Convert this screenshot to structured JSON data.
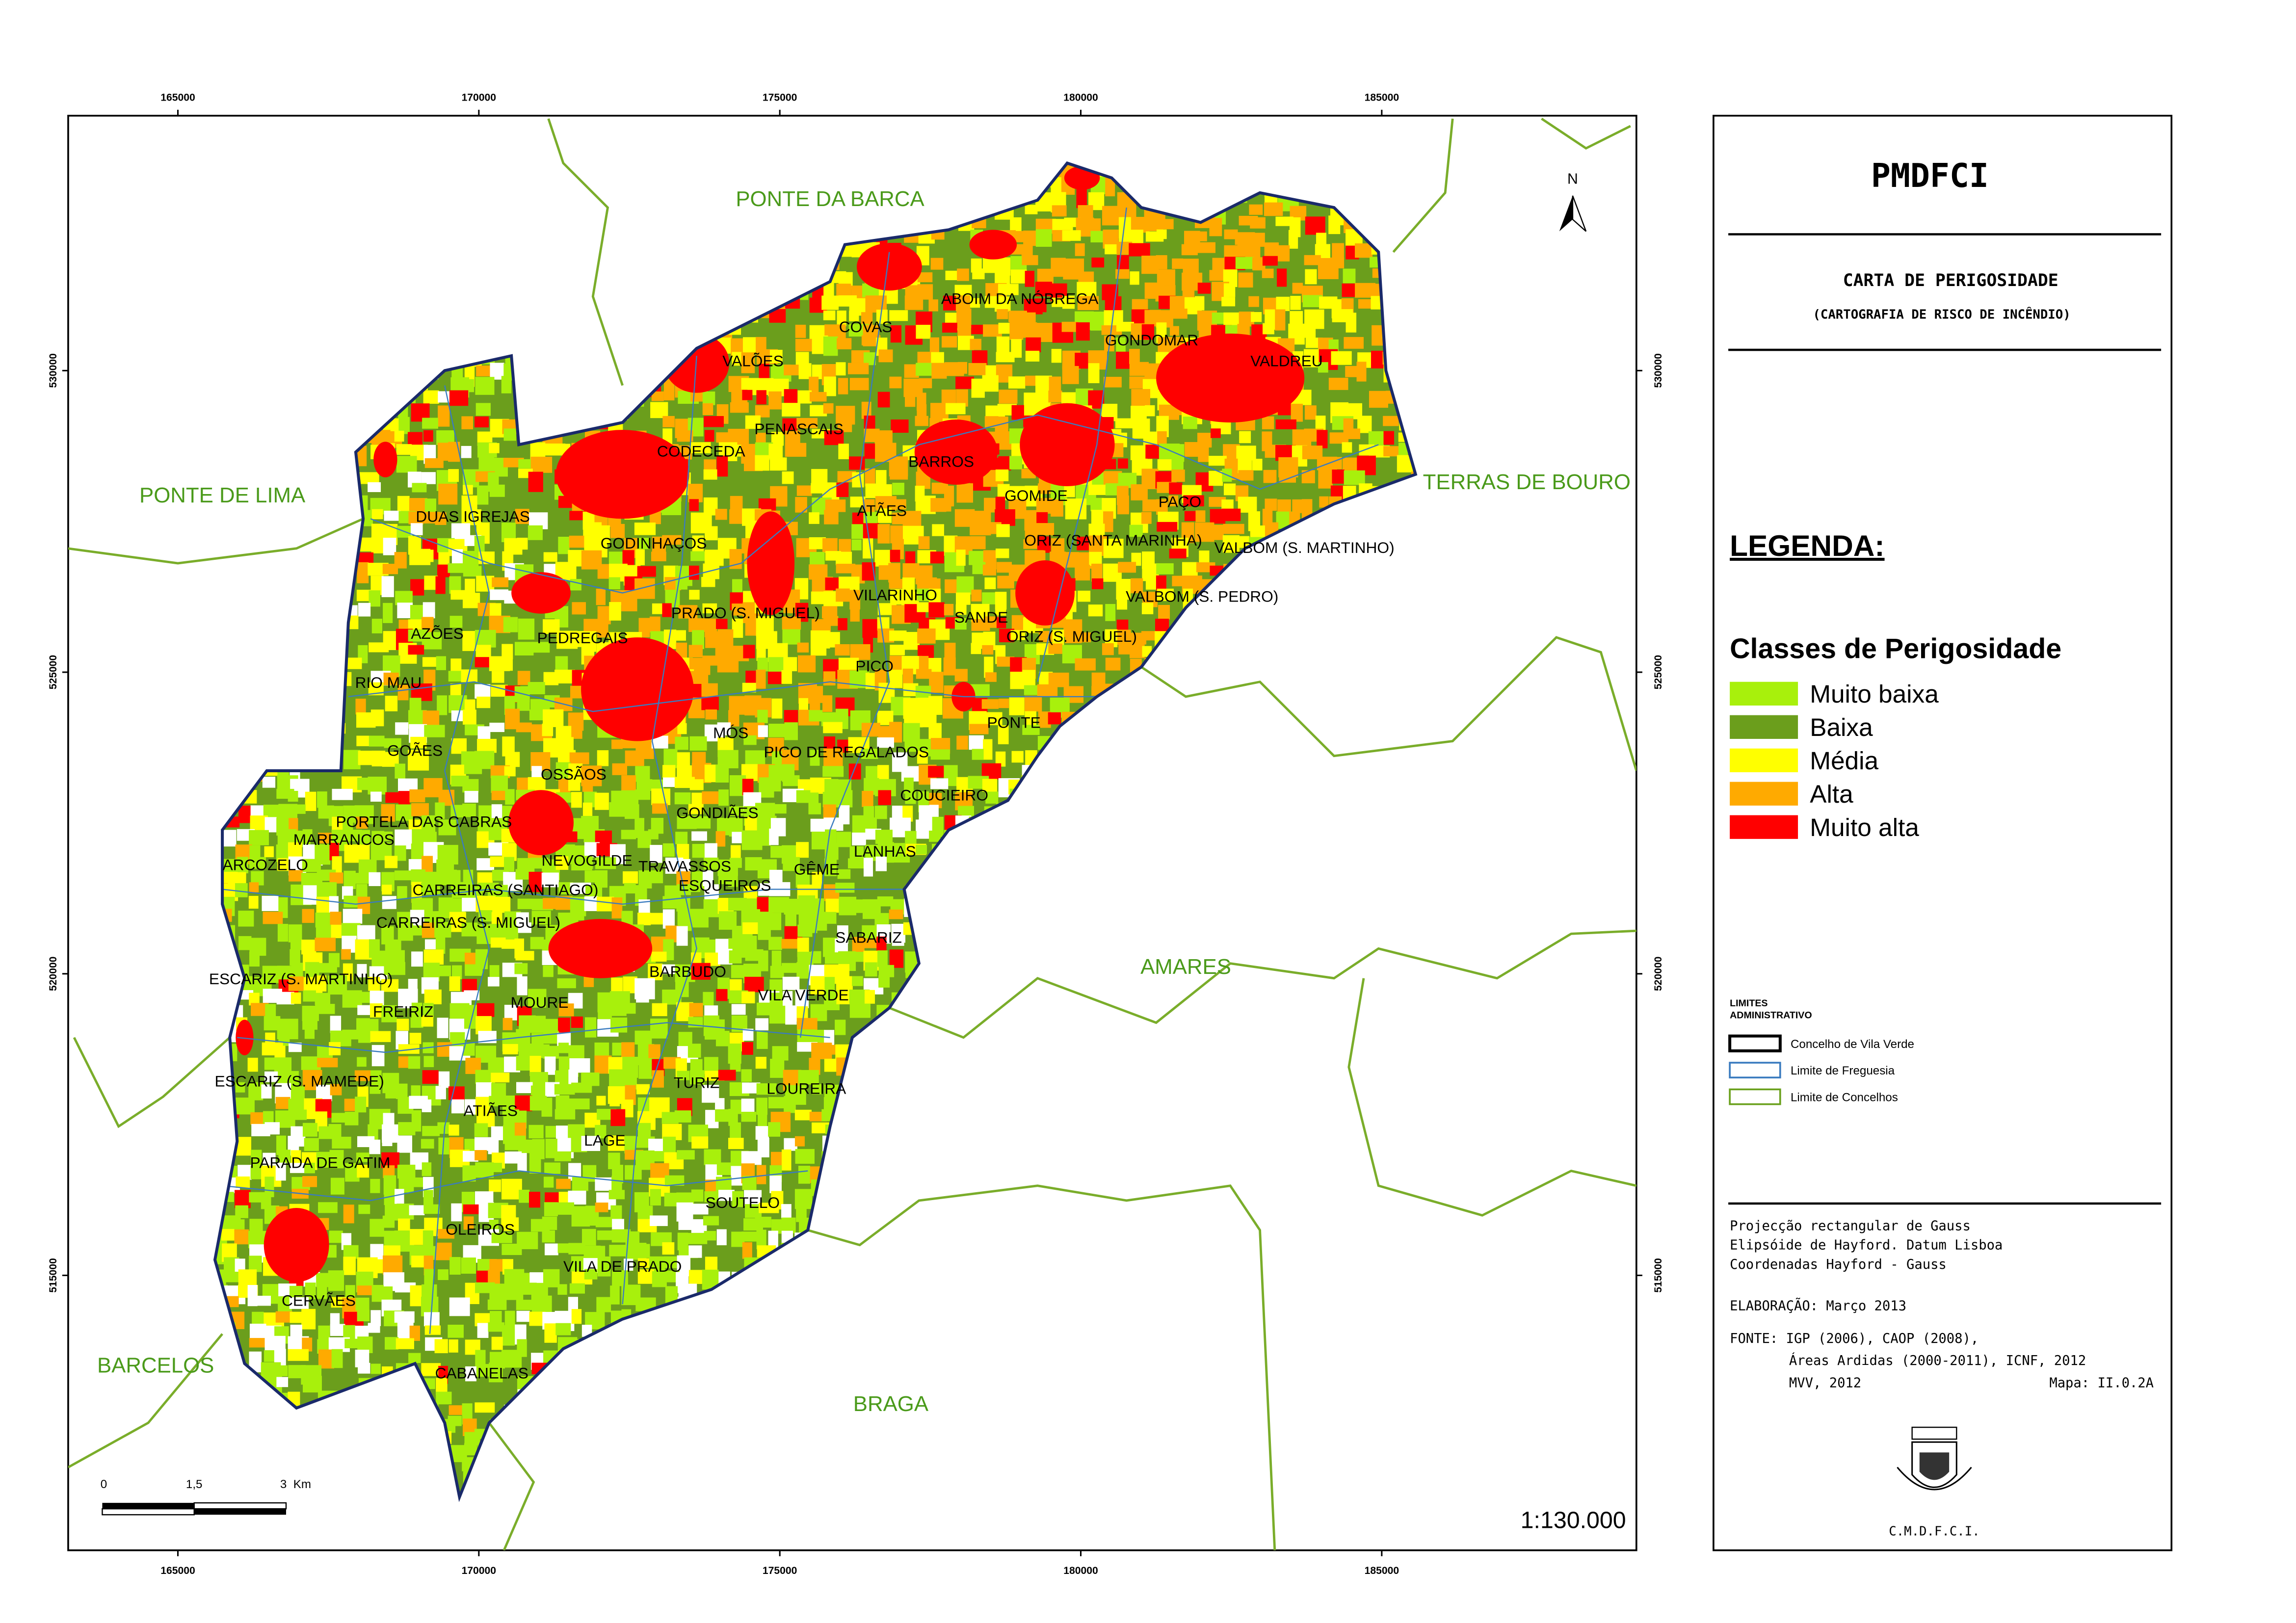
{
  "map": {
    "x_ticks": [
      165000,
      170000,
      175000,
      180000,
      185000
    ],
    "y_ticks": [
      515000,
      520000,
      525000,
      530000
    ],
    "north": "N",
    "scale": "1:130.000",
    "scale_bar": [
      "0",
      "1,5",
      "3  Km"
    ],
    "municipalities": [
      "PONTE DA BARCA",
      "PONTE DE LIMA",
      "TERRAS DE BOURO",
      "AMARES",
      "BARCELOS",
      "BRAGA"
    ],
    "parishes": [
      "ABOIM DA NÓBREGA",
      "COVAS",
      "GONDOMAR",
      "VALDREU",
      "VALÕES",
      "PENASCAIS",
      "CODECEDA",
      "BARROS",
      "GOMIDE",
      "PAÇO",
      "ATÃES",
      "DUAS IGREJAS",
      "GODINHAÇOS",
      "ORIZ (SANTA MARINHA)",
      "VALBOM (S. MARTINHO)",
      "VILARINHO",
      "VALBOM (S. PEDRO)",
      "PRADO (S. MIGUEL)",
      "SANDE",
      "AZÕES",
      "ORIZ (S. MIGUEL)",
      "PEDREGAIS",
      "PICO",
      "RIO MAU",
      "PONTE",
      "MÓS",
      "GOÃES",
      "PICO DE REGALADOS",
      "OSSÃOS",
      "COUCIEIRO",
      "GONDIÃES",
      "PORTELA DAS CABRAS",
      "MARRANCOS",
      "LANHAS",
      "NEVOGILDE",
      "TRAVASSOS",
      "ARCOZELO",
      "GÊME",
      "ESQUEIROS",
      "CARREIRAS (SANTIAGO)",
      "CARREIRAS (S. MIGUEL)",
      "SABARIZ",
      "BARBUDO",
      "ESCARIZ (S. MARTINHO)",
      "VILA VERDE",
      "MOURE",
      "FREIRIZ",
      "ESCARIZ (S. MAMEDE)",
      "TURIZ",
      "LOUREIRA",
      "ATIÃES",
      "LAGE",
      "PARADA DE GATIM",
      "SOUTELO",
      "OLEIROS",
      "VILA DE PRADO",
      "CERVÃES",
      "CABANELAS"
    ]
  },
  "panel": {
    "title": "PMDFCI",
    "subtitle": "CARTA DE PERIGOSIDADE",
    "subtitle2": "(CARTOGRAFIA DE RISCO DE INCÊNDIO)",
    "legend_title": "LEGENDA:",
    "classes_title": "Classes de Perigosidade",
    "classes": [
      {
        "label": "Muito baixa",
        "color": "#a8f00c"
      },
      {
        "label": "Baixa",
        "color": "#6b9e1c"
      },
      {
        "label": "Média",
        "color": "#ffff00"
      },
      {
        "label": "Alta",
        "color": "#ffaa00"
      },
      {
        "label": "Muito alta",
        "color": "#ff0000"
      }
    ],
    "limits_title": [
      "LIMITES",
      "ADMINISTRATIVO"
    ],
    "limits": [
      {
        "label": "Concelho de Vila Verde",
        "color": "#000000"
      },
      {
        "label": "Limite de Freguesia",
        "color": "#3a7bbf"
      },
      {
        "label": "Limite de Concelhos",
        "color": "#6aa01c"
      }
    ],
    "projection": [
      "Projecção rectangular de Gauss",
      "Elipsóide de Hayford. Datum Lisboa",
      "Coordenadas Hayford - Gauss"
    ],
    "elaboration": "ELABORAÇÃO: Março 2013",
    "source": [
      "FONTE: IGP (2006), CAOP (2008),",
      "Áreas Ardidas (2000-2011), ICNF, 2012",
      "MVV, 2012"
    ],
    "map_id": "Mapa: II.0.2A",
    "footer": "C.M.D.F.C.I."
  }
}
